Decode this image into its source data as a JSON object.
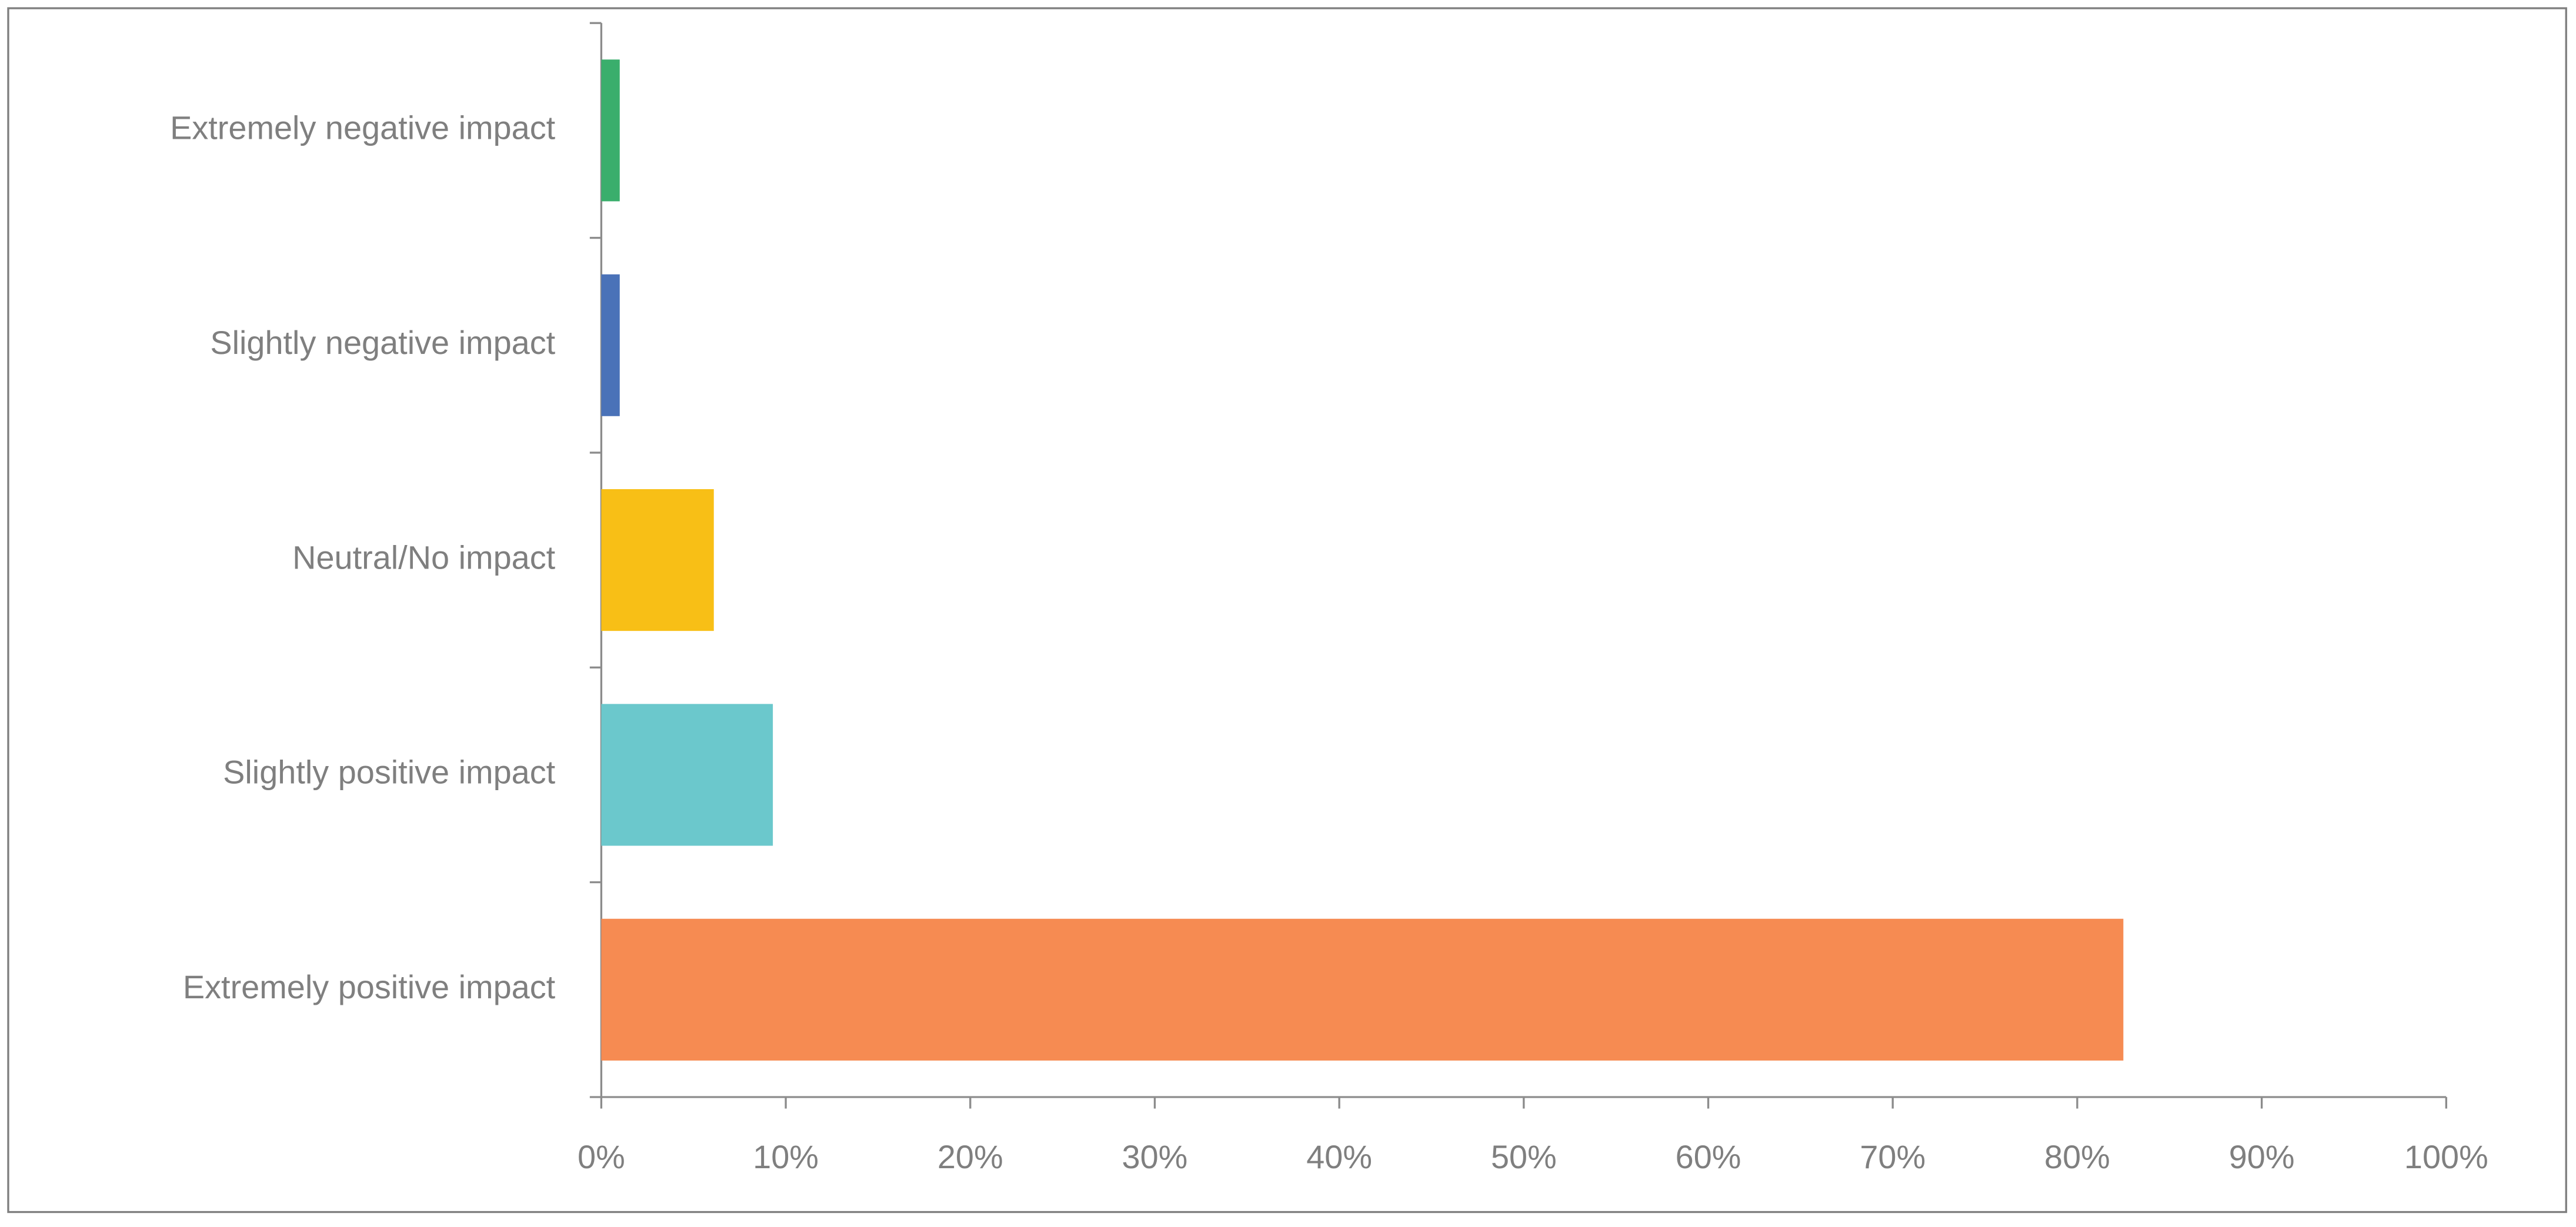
{
  "chart_data": {
    "type": "hbar",
    "categories": [
      "Extremely negative impact",
      "Slightly negative impact",
      "Neutral/No impact",
      "Slightly positive impact",
      "Extremely positive impact"
    ],
    "values": [
      1.0,
      1.0,
      6.1,
      9.3,
      82.5
    ],
    "colors": [
      "#3aae6c",
      "#4a72b8",
      "#f8bf16",
      "#6bc8cc",
      "#f68b52"
    ],
    "xlim": [
      0,
      100
    ],
    "xticks": [
      {
        "value": 0,
        "label": "0%"
      },
      {
        "value": 10,
        "label": "10%"
      },
      {
        "value": 20,
        "label": "20%"
      },
      {
        "value": 30,
        "label": "30%"
      },
      {
        "value": 40,
        "label": "40%"
      },
      {
        "value": 50,
        "label": "50%"
      },
      {
        "value": 60,
        "label": "60%"
      },
      {
        "value": 70,
        "label": "70%"
      },
      {
        "value": 80,
        "label": "80%"
      },
      {
        "value": 90,
        "label": "90%"
      },
      {
        "value": 100,
        "label": "100%"
      }
    ],
    "grid": false
  }
}
